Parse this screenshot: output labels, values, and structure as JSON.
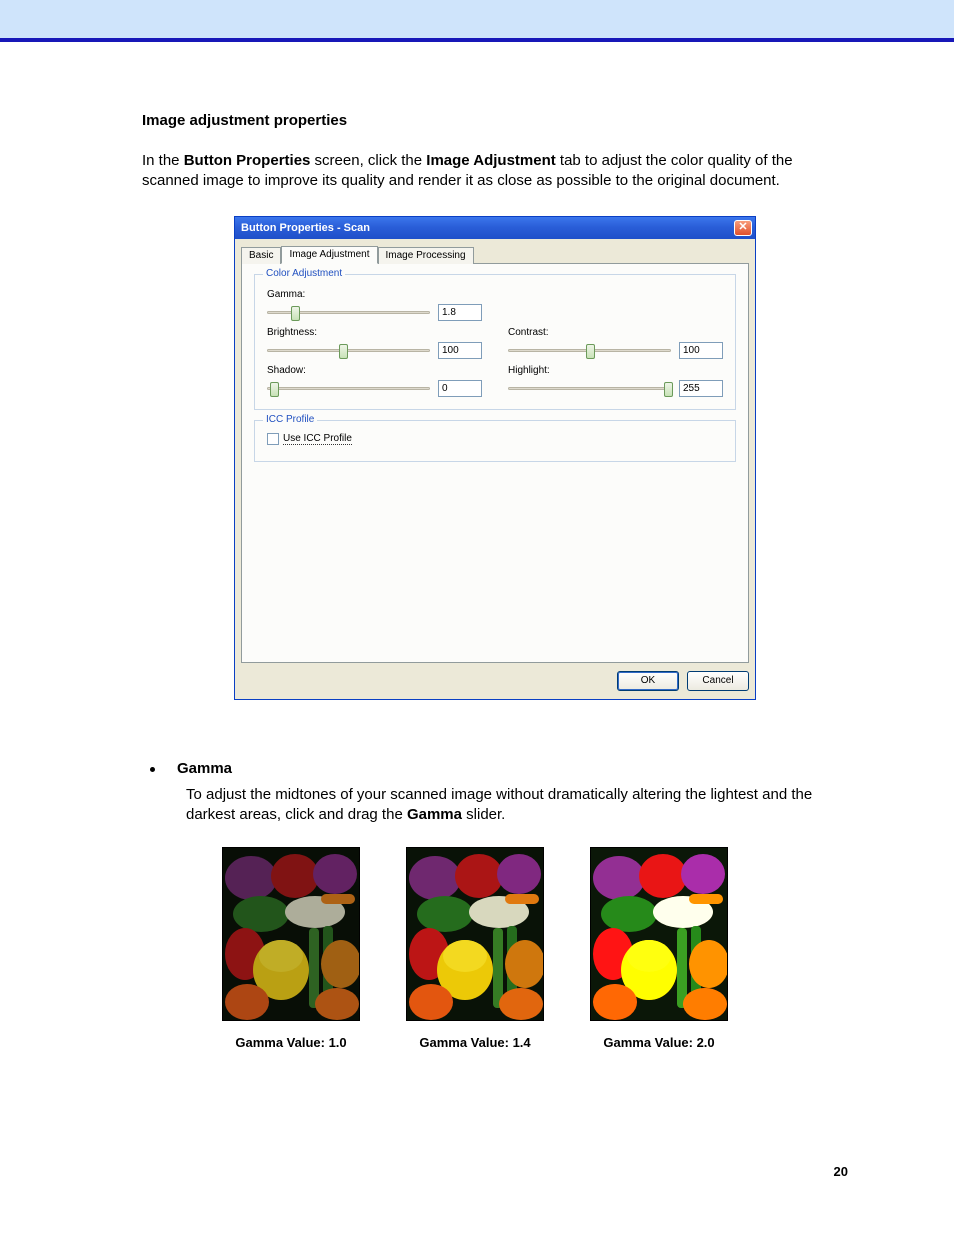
{
  "colors": {
    "banner_bg": "#cfe4fb",
    "banner_border": "#1818b8",
    "titlebar_gradient": [
      "#3b76ec",
      "#1f4fc9"
    ],
    "close_gradient": [
      "#f89e7c",
      "#e2502b"
    ],
    "dialog_body": "#ece9d8",
    "panel_bg": "#fcfcfa",
    "legend_color": "#2050c0",
    "field_border": "#7f9db9"
  },
  "doc": {
    "heading": "Image adjustment properties",
    "intro_pre": "In the ",
    "intro_b1": "Button Properties",
    "intro_mid": " screen, click the ",
    "intro_b2": "Image Adjustment",
    "intro_post": " tab to adjust the color quality of the scanned image to improve its quality and render it as close as possible to the original document.",
    "page_number": "20"
  },
  "dialog": {
    "title": "Button Properties - Scan",
    "close_glyph": "✕",
    "tabs": {
      "basic": "Basic",
      "image_adjustment": "Image Adjustment",
      "image_processing": "Image Processing"
    },
    "groups": {
      "color_adjustment": "Color Adjustment",
      "icc_profile": "ICC Profile"
    },
    "controls": {
      "gamma": {
        "label": "Gamma:",
        "value": "1.8",
        "thumb_pct": 14
      },
      "brightness": {
        "label": "Brightness:",
        "value": "100",
        "thumb_pct": 44
      },
      "contrast": {
        "label": "Contrast:",
        "value": "100",
        "thumb_pct": 48
      },
      "shadow": {
        "label": "Shadow:",
        "value": "0",
        "thumb_pct": 1
      },
      "highlight": {
        "label": "Highlight:",
        "value": "255",
        "thumb_pct": 96
      }
    },
    "icc_checkbox_label": "Use ICC Profile",
    "buttons": {
      "ok": "OK",
      "cancel": "Cancel"
    }
  },
  "gamma_section": {
    "bullet_label": "Gamma",
    "text_pre": "To adjust the midtones of your scanned image without dramatically altering the lightest and the darkest areas, click and drag the ",
    "text_b": "Gamma",
    "text_post": " slider.",
    "samples": [
      {
        "caption": "Gamma Value: 1.0",
        "brightness": 0.8,
        "saturate": 1.0
      },
      {
        "caption": "Gamma Value: 1.4",
        "brightness": 1.0,
        "saturate": 1.1
      },
      {
        "caption": "Gamma Value: 2.0",
        "brightness": 1.25,
        "saturate": 1.25
      }
    ]
  }
}
